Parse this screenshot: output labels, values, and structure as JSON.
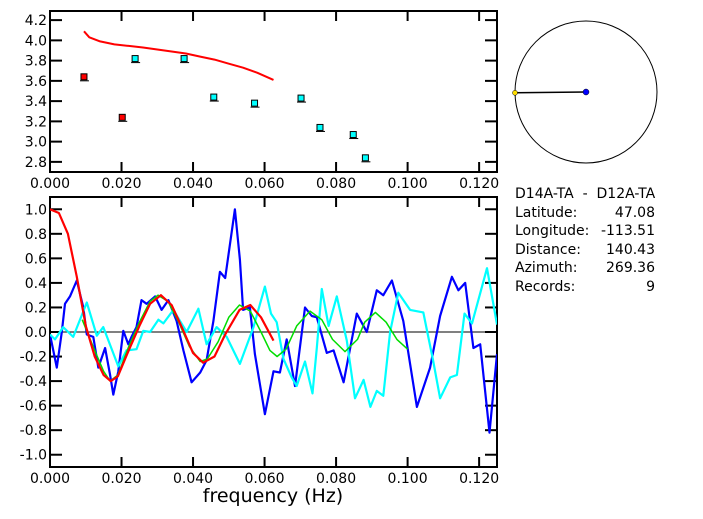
{
  "info": {
    "pair": "D14A-TA  -  D12A-TA",
    "rows": [
      {
        "label": "Latitude:",
        "value": "47.08"
      },
      {
        "label": "Longitude:",
        "value": "-113.51"
      },
      {
        "label": "Distance:",
        "value": "140.43"
      },
      {
        "label": "Azimuth:",
        "value": "269.36"
      },
      {
        "label": "Records:",
        "value": "9"
      }
    ]
  },
  "colors": {
    "red": "#ff0000",
    "cyan": "#00ffff",
    "blue": "#0000ff",
    "green": "#00dd00",
    "yellow": "#ffdd00"
  },
  "chart_data": [
    {
      "type": "scatter",
      "title": "",
      "xlabel": "",
      "ylabel": "",
      "xlim": [
        0,
        0.125
      ],
      "ylim": [
        2.7,
        4.29
      ],
      "xticks": [
        "0.000",
        "0.020",
        "0.040",
        "0.060",
        "0.080",
        "0.100",
        "0.120"
      ],
      "yticks": [
        "2.8",
        "3.0",
        "3.2",
        "3.4",
        "3.6",
        "3.8",
        "4.0",
        "4.2"
      ],
      "points_red": [
        [
          0.0095,
          3.64
        ],
        [
          0.0202,
          3.24
        ]
      ],
      "points_cyan": [
        [
          0.0238,
          3.82
        ],
        [
          0.0375,
          3.82
        ],
        [
          0.0458,
          3.44
        ],
        [
          0.0572,
          3.38
        ],
        [
          0.0702,
          3.43
        ],
        [
          0.0755,
          3.14
        ],
        [
          0.0848,
          3.07
        ],
        [
          0.0882,
          2.84
        ]
      ],
      "curve_red": [
        [
          0.0095,
          4.09
        ],
        [
          0.011,
          4.03
        ],
        [
          0.014,
          3.99
        ],
        [
          0.018,
          3.96
        ],
        [
          0.022,
          3.945
        ],
        [
          0.026,
          3.93
        ],
        [
          0.03,
          3.91
        ],
        [
          0.034,
          3.89
        ],
        [
          0.038,
          3.87
        ],
        [
          0.042,
          3.84
        ],
        [
          0.046,
          3.81
        ],
        [
          0.05,
          3.77
        ],
        [
          0.054,
          3.73
        ],
        [
          0.058,
          3.68
        ],
        [
          0.0625,
          3.61
        ]
      ]
    },
    {
      "type": "line",
      "xlabel": "frequency (Hz)",
      "ylabel": "",
      "xlim": [
        0,
        0.125
      ],
      "ylim": [
        -1.1,
        1.1
      ],
      "xticks": [
        "0.000",
        "0.020",
        "0.040",
        "0.060",
        "0.080",
        "0.100",
        "0.120"
      ],
      "yticks": [
        "1.0",
        "0.8",
        "0.6",
        "0.4",
        "0.2",
        "0.0",
        "-0.2",
        "-0.4",
        "-0.6",
        "-0.8",
        "-1.0"
      ],
      "series": [
        {
          "name": "blue",
          "color": "#0000ff",
          "points": [
            [
              0,
              -0.02
            ],
            [
              0.0019,
              -0.29
            ],
            [
              0.0033,
              0
            ],
            [
              0.0042,
              0.23
            ],
            [
              0.0056,
              0.29
            ],
            [
              0.0075,
              0.42
            ],
            [
              0.0093,
              0.2
            ],
            [
              0.0103,
              -0.02
            ],
            [
              0.0121,
              -0.04
            ],
            [
              0.0135,
              -0.29
            ],
            [
              0.0154,
              -0.13
            ],
            [
              0.0168,
              -0.35
            ],
            [
              0.0177,
              -0.51
            ],
            [
              0.0191,
              -0.32
            ],
            [
              0.0205,
              0.01
            ],
            [
              0.0219,
              -0.1
            ],
            [
              0.0228,
              -0.04
            ],
            [
              0.0242,
              0.04
            ],
            [
              0.0256,
              0.26
            ],
            [
              0.027,
              0.23
            ],
            [
              0.0294,
              0.29
            ],
            [
              0.0312,
              0.18
            ],
            [
              0.0331,
              0.26
            ],
            [
              0.0354,
              0.09
            ],
            [
              0.0373,
              -0.15
            ],
            [
              0.0396,
              -0.41
            ],
            [
              0.042,
              -0.33
            ],
            [
              0.0438,
              -0.23
            ],
            [
              0.0457,
              0.09
            ],
            [
              0.0475,
              0.49
            ],
            [
              0.049,
              0.44
            ],
            [
              0.0517,
              1.0
            ],
            [
              0.0531,
              0.59
            ],
            [
              0.054,
              0.18
            ],
            [
              0.0559,
              0.2
            ],
            [
              0.0573,
              -0.18
            ],
            [
              0.0601,
              -0.67
            ],
            [
              0.0625,
              -0.32
            ],
            [
              0.0643,
              -0.33
            ],
            [
              0.0662,
              -0.06
            ],
            [
              0.0685,
              -0.44
            ],
            [
              0.0713,
              0.2
            ],
            [
              0.0732,
              0.13
            ],
            [
              0.0746,
              0.12
            ],
            [
              0.0774,
              -0.17
            ],
            [
              0.0793,
              -0.15
            ],
            [
              0.0821,
              -0.41
            ],
            [
              0.0858,
              0.15
            ],
            [
              0.0886,
              0
            ],
            [
              0.0914,
              0.34
            ],
            [
              0.0932,
              0.3
            ],
            [
              0.0956,
              0.42
            ],
            [
              0.0988,
              0.09
            ],
            [
              0.1026,
              -0.61
            ],
            [
              0.1063,
              -0.29
            ],
            [
              0.1091,
              0.13
            ],
            [
              0.1124,
              0.45
            ],
            [
              0.1142,
              0.34
            ],
            [
              0.1161,
              0.4
            ],
            [
              0.1184,
              -0.13
            ],
            [
              0.1203,
              -0.1
            ],
            [
              0.1229,
              -0.82
            ],
            [
              0.125,
              -0.18
            ]
          ]
        },
        {
          "name": "cyan",
          "color": "#00ffff",
          "points": [
            [
              0,
              -0.02
            ],
            [
              0.0014,
              -0.06
            ],
            [
              0.0037,
              0.04
            ],
            [
              0.0065,
              -0.04
            ],
            [
              0.0103,
              0.24
            ],
            [
              0.0131,
              -0.03
            ],
            [
              0.0149,
              0.04
            ],
            [
              0.0191,
              -0.28
            ],
            [
              0.0214,
              -0.15
            ],
            [
              0.0242,
              -0.14
            ],
            [
              0.0261,
              0.01
            ],
            [
              0.028,
              0
            ],
            [
              0.0303,
              0.1
            ],
            [
              0.0317,
              0.07
            ],
            [
              0.0345,
              0.18
            ],
            [
              0.0382,
              0
            ],
            [
              0.0415,
              0.19
            ],
            [
              0.0438,
              -0.1
            ],
            [
              0.0466,
              0.04
            ],
            [
              0.0494,
              -0.04
            ],
            [
              0.0531,
              -0.26
            ],
            [
              0.0569,
              0.04
            ],
            [
              0.0601,
              0.37
            ],
            [
              0.0618,
              0.15
            ],
            [
              0.0634,
              0.08
            ],
            [
              0.0653,
              -0.22
            ],
            [
              0.0676,
              -0.37
            ],
            [
              0.069,
              -0.44
            ],
            [
              0.0713,
              -0.24
            ],
            [
              0.0734,
              -0.5
            ],
            [
              0.0746,
              -0.13
            ],
            [
              0.076,
              0.35
            ],
            [
              0.0779,
              0.05
            ],
            [
              0.0802,
              0.29
            ],
            [
              0.083,
              -0.07
            ],
            [
              0.0853,
              -0.54
            ],
            [
              0.0877,
              -0.39
            ],
            [
              0.0896,
              -0.61
            ],
            [
              0.0914,
              -0.48
            ],
            [
              0.0932,
              -0.52
            ],
            [
              0.0951,
              0
            ],
            [
              0.0974,
              0.32
            ],
            [
              0.1007,
              0.18
            ],
            [
              0.1044,
              0.16
            ],
            [
              0.1072,
              -0.24
            ],
            [
              0.1091,
              -0.54
            ],
            [
              0.1119,
              -0.37
            ],
            [
              0.1138,
              -0.35
            ],
            [
              0.1159,
              0.15
            ],
            [
              0.118,
              0.07
            ],
            [
              0.1222,
              0.52
            ],
            [
              0.125,
              0.06
            ]
          ]
        },
        {
          "name": "green",
          "color": "#00dd00",
          "points": [
            [
              0.009,
              0.1
            ],
            [
              0.0125,
              -0.15
            ],
            [
              0.015,
              -0.32
            ],
            [
              0.0168,
              -0.4
            ],
            [
              0.019,
              -0.35
            ],
            [
              0.022,
              -0.12
            ],
            [
              0.025,
              0.08
            ],
            [
              0.028,
              0.25
            ],
            [
              0.0302,
              0.3
            ],
            [
              0.033,
              0.25
            ],
            [
              0.036,
              0.08
            ],
            [
              0.039,
              -0.12
            ],
            [
              0.042,
              -0.24
            ],
            [
              0.044,
              -0.22
            ],
            [
              0.047,
              -0.08
            ],
            [
              0.05,
              0.12
            ],
            [
              0.053,
              0.22
            ],
            [
              0.056,
              0.17
            ],
            [
              0.059,
              0.0
            ],
            [
              0.0615,
              -0.15
            ],
            [
              0.0635,
              -0.2
            ],
            [
              0.066,
              -0.14
            ],
            [
              0.069,
              0.05
            ],
            [
              0.0727,
              0.17
            ],
            [
              0.076,
              0.1
            ],
            [
              0.079,
              -0.06
            ],
            [
              0.0825,
              -0.16
            ],
            [
              0.086,
              -0.06
            ],
            [
              0.088,
              0.08
            ],
            [
              0.091,
              0.16
            ],
            [
              0.094,
              0.08
            ],
            [
              0.097,
              -0.06
            ],
            [
              0.1,
              -0.14
            ]
          ]
        },
        {
          "name": "red",
          "color": "#ff0000",
          "points": [
            [
              0,
              1.0
            ],
            [
              0.0025,
              0.97
            ],
            [
              0.005,
              0.8
            ],
            [
              0.0075,
              0.45
            ],
            [
              0.01,
              0.05
            ],
            [
              0.0125,
              -0.2
            ],
            [
              0.015,
              -0.35
            ],
            [
              0.017,
              -0.4
            ],
            [
              0.019,
              -0.36
            ],
            [
              0.022,
              -0.15
            ],
            [
              0.025,
              0.05
            ],
            [
              0.028,
              0.23
            ],
            [
              0.031,
              0.3
            ],
            [
              0.034,
              0.22
            ],
            [
              0.037,
              0.03
            ],
            [
              0.04,
              -0.17
            ],
            [
              0.0428,
              -0.25
            ],
            [
              0.046,
              -0.2
            ],
            [
              0.049,
              -0.02
            ],
            [
              0.053,
              0.18
            ],
            [
              0.056,
              0.22
            ],
            [
              0.059,
              0.12
            ],
            [
              0.0625,
              -0.07
            ]
          ]
        }
      ]
    },
    {
      "type": "azimuth-dial",
      "azimuth": 269.36
    }
  ]
}
